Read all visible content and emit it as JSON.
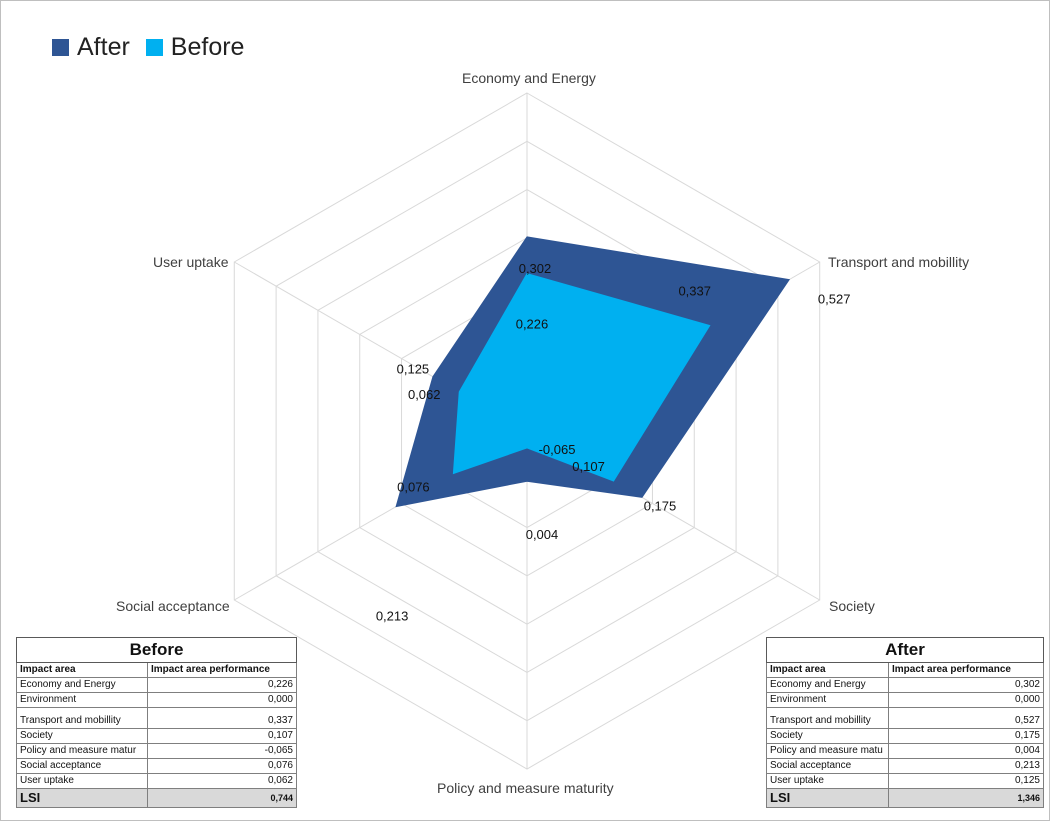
{
  "chart_data": {
    "type": "radar",
    "title": "",
    "axes": [
      "Economy and Energy",
      "Transport and mobillity",
      "Society",
      "Policy and measure maturity",
      "Social acceptance",
      "User uptake"
    ],
    "series": [
      {
        "name": "After",
        "color": "#2e5594",
        "values": [
          0.302,
          0.527,
          0.175,
          0.004,
          0.213,
          0.125
        ],
        "labels": [
          "0,302",
          "0,527",
          "0,175",
          "0,004",
          "0,213",
          "0,125"
        ]
      },
      {
        "name": "Before",
        "color": "#00b0f0",
        "values": [
          0.226,
          0.337,
          0.107,
          -0.065,
          0.076,
          0.062
        ],
        "labels": [
          "0,226",
          "0,337",
          "0,107",
          "-0,065",
          "0,076",
          "0,062"
        ]
      }
    ],
    "rlim": [
      -0.1,
      0.6
    ],
    "grid": true,
    "legend_position": "top-left"
  },
  "tables": {
    "before": {
      "title": "Before",
      "header": [
        "Impact area",
        "Impact area performance"
      ],
      "rows": [
        [
          "Economy and Energy",
          "0,226"
        ],
        [
          "Environment",
          "0,000"
        ],
        [
          "Transport and mobillity",
          "0,337"
        ],
        [
          "Society",
          "0,107"
        ],
        [
          "Policy and measure matur",
          "-0,065"
        ],
        [
          "Social acceptance",
          "0,076"
        ],
        [
          "User uptake",
          "0,062"
        ]
      ],
      "total": [
        "LSI",
        "0,744"
      ]
    },
    "after": {
      "title": "After",
      "header": [
        "Impact area",
        "Impact area performance"
      ],
      "rows": [
        [
          "Economy and Energy",
          "0,302"
        ],
        [
          "Environment",
          "0,000"
        ],
        [
          "Transport and mobillity",
          "0,527"
        ],
        [
          "Society",
          "0,175"
        ],
        [
          "Policy and measure matu",
          "0,004"
        ],
        [
          "Social acceptance",
          "0,213"
        ],
        [
          "User uptake",
          "0,125"
        ]
      ],
      "total": [
        "LSI",
        "1,346"
      ]
    }
  }
}
